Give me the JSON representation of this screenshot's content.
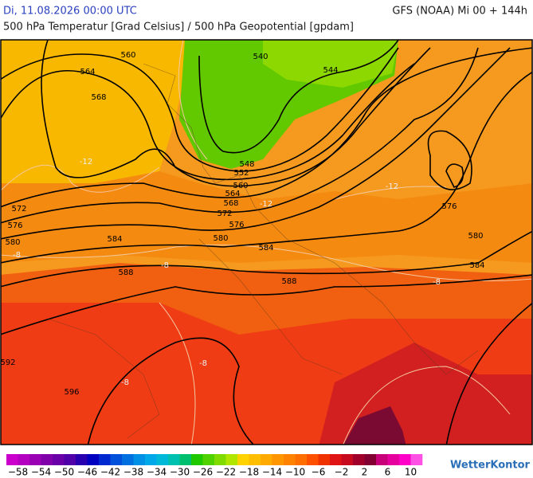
{
  "header": {
    "date": "Di, 11.08.2026 00:00 UTC",
    "model": "GFS (NOAA) Mi 00 + 144h",
    "subtitle": "500 hPa Temperatur [Grad Celsius] / 500 hPa Geopotential [gpdam]"
  },
  "contour_labels": [
    "560",
    "564",
    "568",
    "540",
    "544",
    "548",
    "552",
    "560",
    "564",
    "568",
    "572",
    "576",
    "572",
    "576",
    "580",
    "580",
    "584",
    "584",
    "588",
    "588",
    "576",
    "580",
    "584",
    "592",
    "596"
  ],
  "temperature_labels": [
    "-12",
    "-12",
    "-12",
    "-8",
    "-8",
    "-8",
    "-8",
    "-8"
  ],
  "colorbar": {
    "labels": [
      "−58",
      "−54",
      "−50",
      "−46",
      "−42",
      "−38",
      "−34",
      "−30",
      "−26",
      "−22",
      "−18",
      "−14",
      "−10",
      "−6",
      "−2",
      "2",
      "6",
      "10"
    ],
    "colors": [
      "#cc00cc",
      "#b400c0",
      "#9a00b4",
      "#8000aa",
      "#6a00a8",
      "#5000a8",
      "#2800b0",
      "#0000c0",
      "#0028d0",
      "#0050dc",
      "#0070e0",
      "#0090e6",
      "#00a8ea",
      "#00b8d8",
      "#00c0b0",
      "#00c070",
      "#20c800",
      "#50d200",
      "#80dc00",
      "#b0e600",
      "#ffd200",
      "#ffbe00",
      "#ffaa00",
      "#ff9600",
      "#ff8200",
      "#ff6e00",
      "#ff5000",
      "#f03200",
      "#e01414",
      "#c80a1e",
      "#a0002a",
      "#820032",
      "#c8007a",
      "#e6009e",
      "#ff00c8",
      "#ff50e6"
    ]
  },
  "logo": "WetterKontor"
}
